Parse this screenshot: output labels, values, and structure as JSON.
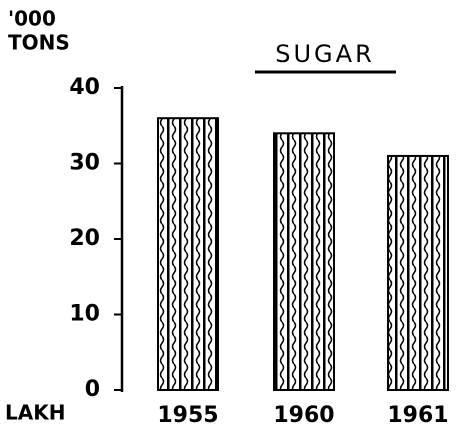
{
  "chart_data": {
    "type": "bar",
    "title": "SUGAR",
    "ylabel": [
      "'000",
      "TONS"
    ],
    "xlabel": "LAKH",
    "categories": [
      "1955",
      "1960",
      "1961"
    ],
    "values": [
      36,
      34,
      31
    ],
    "color": "#000000",
    "ylim": [
      0,
      40
    ],
    "yticks": [
      0,
      10,
      20,
      30,
      40
    ]
  }
}
